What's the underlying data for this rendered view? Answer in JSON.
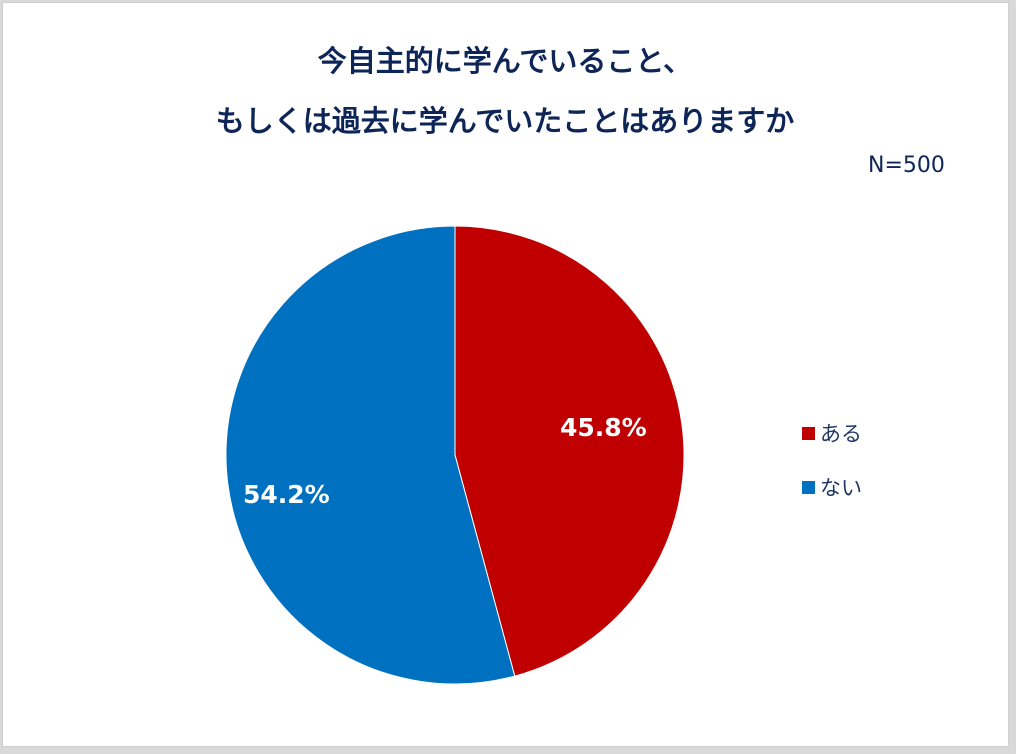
{
  "chart_data": {
    "type": "pie",
    "title": "今自主的に学んでいること、もしくは過去に学んでいたことはありますか",
    "title_lines": [
      "今自主的に学んでいること、",
      "もしくは過去に学んでいたことはありますか"
    ],
    "subtitle": "N=500",
    "categories": [
      "ある",
      "ない"
    ],
    "values": [
      45.8,
      54.2
    ],
    "unit": "%",
    "data_labels": [
      "45.8%",
      "54.2%"
    ],
    "colors": [
      "#c00000",
      "#0070c0"
    ],
    "legend_position": "right",
    "start_angle": "12 o'clock, clockwise"
  },
  "legend": {
    "items": [
      {
        "label": "ある",
        "color": "#c00000"
      },
      {
        "label": "ない",
        "color": "#0070c0"
      }
    ]
  }
}
